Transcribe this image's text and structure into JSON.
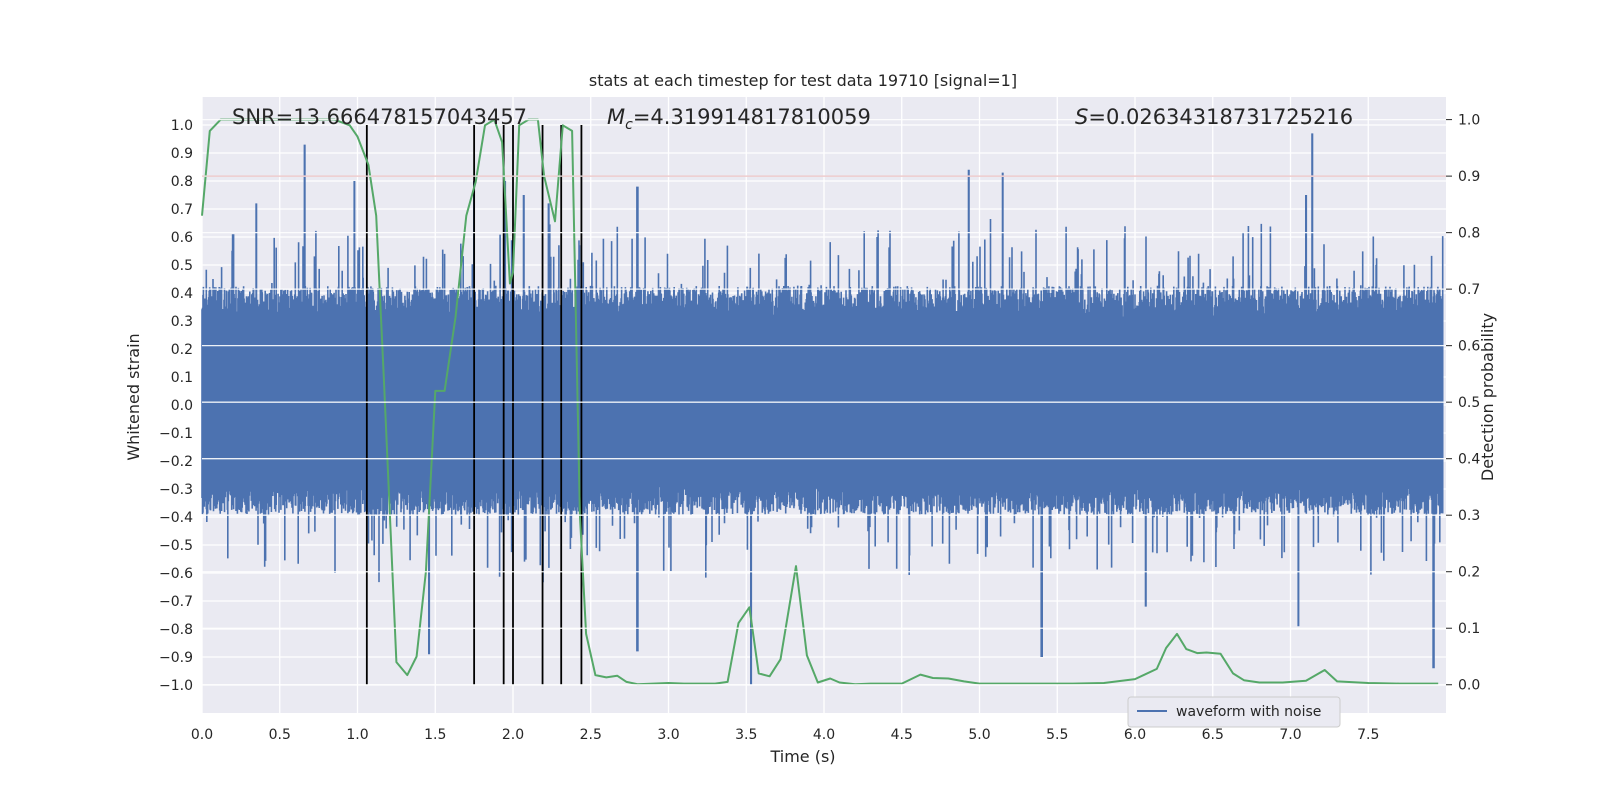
{
  "chart_data": {
    "type": "line",
    "title": "stats at each timestep for test data 19710 [signal=1]",
    "xlabel": "Time (s)",
    "ylabel": "Whitened strain",
    "y2label": "Detection probability",
    "xlim": [
      0.0,
      8.0
    ],
    "ylim": [
      -1.1,
      1.1
    ],
    "y2lim": [
      -0.05,
      1.04
    ],
    "xticks": [
      "0.0",
      "0.5",
      "1.0",
      "1.5",
      "2.0",
      "2.5",
      "3.0",
      "3.5",
      "4.0",
      "4.5",
      "5.0",
      "5.5",
      "6.0",
      "6.5",
      "7.0",
      "7.5"
    ],
    "yticks": [
      "1.0",
      "0.9",
      "0.8",
      "0.7",
      "0.6",
      "0.5",
      "0.4",
      "0.3",
      "0.2",
      "0.1",
      "0.0",
      "-0.1",
      "-0.2",
      "-0.3",
      "-0.4",
      "-0.5",
      "-0.6",
      "-0.7",
      "-0.8",
      "-0.9",
      "-1.0"
    ],
    "y2ticks": [
      "1.0",
      "0.9",
      "0.8",
      "0.7",
      "0.6",
      "0.5",
      "0.4",
      "0.3",
      "0.2",
      "0.1",
      "0.0"
    ],
    "grid": true,
    "legend_position": "bottom-right",
    "annotations": {
      "snr_label": "SNR=13.666478157043457",
      "mc_symbol": "M",
      "mc_subscript": "c",
      "mc_value": "=4.319914817810059",
      "s_symbol": "S",
      "s_value": "=0.02634318731725216"
    },
    "series": [
      {
        "name": "waveform with noise",
        "axis": "left",
        "color": "#4c72b0",
        "style": "noise-band",
        "envelope_upper_typical": 0.38,
        "envelope_lower_typical": -0.35,
        "peaks": [
          {
            "x": 0.66,
            "y": 0.93
          },
          {
            "x": 0.98,
            "y": 0.8
          },
          {
            "x": 0.2,
            "y": 0.61
          },
          {
            "x": 0.35,
            "y": 0.72
          },
          {
            "x": 1.75,
            "y": 0.8
          },
          {
            "x": 1.95,
            "y": 0.8
          },
          {
            "x": 2.07,
            "y": 0.75
          },
          {
            "x": 2.23,
            "y": 0.72
          },
          {
            "x": 2.8,
            "y": 0.78
          },
          {
            "x": 4.93,
            "y": 0.84
          },
          {
            "x": 5.15,
            "y": 0.83
          },
          {
            "x": 7.14,
            "y": 0.97
          },
          {
            "x": 7.1,
            "y": 0.75
          }
        ],
        "troughs": [
          {
            "x": 1.46,
            "y": -0.89
          },
          {
            "x": 2.8,
            "y": -0.88
          },
          {
            "x": 3.53,
            "y": -1.0
          },
          {
            "x": 5.4,
            "y": -0.9
          },
          {
            "x": 6.07,
            "y": -0.72
          },
          {
            "x": 7.05,
            "y": -0.79
          },
          {
            "x": 7.92,
            "y": -0.94
          }
        ]
      },
      {
        "name": "",
        "axis": "right",
        "color": "#55a868",
        "x": [
          0.0,
          0.05,
          0.12,
          0.2,
          0.3,
          0.5,
          0.7,
          0.85,
          0.95,
          1.0,
          1.07,
          1.12,
          1.17,
          1.25,
          1.32,
          1.38,
          1.44,
          1.5,
          1.56,
          1.63,
          1.7,
          1.76,
          1.82,
          1.88,
          1.93,
          1.98,
          2.0,
          2.04,
          2.1,
          2.16,
          2.2,
          2.27,
          2.32,
          2.38,
          2.43,
          2.47,
          2.53,
          2.6,
          2.67,
          2.73,
          2.8,
          2.9,
          3.0,
          3.1,
          3.2,
          3.3,
          3.38,
          3.45,
          3.52,
          3.58,
          3.65,
          3.72,
          3.82,
          3.89,
          3.96,
          4.04,
          4.1,
          4.2,
          4.3,
          4.4,
          4.5,
          4.56,
          4.62,
          4.7,
          4.8,
          4.9,
          5.0,
          5.2,
          5.4,
          5.6,
          5.8,
          6.0,
          6.14,
          6.2,
          6.27,
          6.33,
          6.4,
          6.46,
          6.55,
          6.63,
          6.7,
          6.8,
          6.95,
          7.1,
          7.22,
          7.3,
          7.5,
          7.7,
          7.9,
          7.95
        ],
        "values": [
          0.83,
          0.98,
          1.0,
          1.0,
          1.0,
          1.0,
          1.0,
          1.0,
          0.99,
          0.97,
          0.92,
          0.83,
          0.54,
          0.04,
          0.017,
          0.05,
          0.2,
          0.52,
          0.52,
          0.65,
          0.83,
          0.89,
          0.99,
          1.0,
          0.96,
          0.71,
          0.73,
          0.99,
          1.0,
          1.0,
          0.9,
          0.82,
          0.99,
          0.98,
          0.3,
          0.09,
          0.017,
          0.013,
          0.016,
          0.005,
          0.001,
          0.002,
          0.003,
          0.002,
          0.002,
          0.002,
          0.005,
          0.109,
          0.137,
          0.02,
          0.015,
          0.045,
          0.21,
          0.052,
          0.004,
          0.011,
          0.004,
          0.001,
          0.002,
          0.002,
          0.002,
          0.01,
          0.018,
          0.012,
          0.011,
          0.006,
          0.002,
          0.002,
          0.002,
          0.002,
          0.003,
          0.01,
          0.028,
          0.065,
          0.09,
          0.063,
          0.056,
          0.057,
          0.055,
          0.02,
          0.008,
          0.004,
          0.004,
          0.007,
          0.026,
          0.006,
          0.003,
          0.002,
          0.002,
          0.002
        ]
      }
    ],
    "threshold": {
      "axis": "right",
      "value": 0.9,
      "color": "#c44e52"
    },
    "vertical_lines": {
      "color": "#000000",
      "x": [
        1.06,
        1.75,
        1.94,
        2.0,
        2.19,
        2.31,
        2.44
      ],
      "y_from": -1.0,
      "y_to": 1.0
    }
  }
}
